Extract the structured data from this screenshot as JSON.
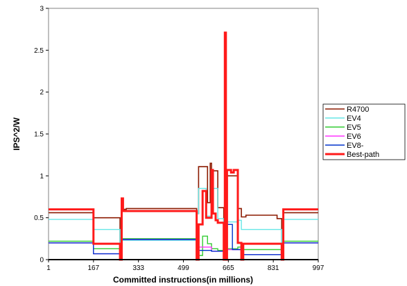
{
  "chart_data": {
    "type": "line",
    "title": "",
    "xlabel": "Committed instructions(in millions)",
    "ylabel": "IPS^2/W",
    "xlim": [
      1,
      997
    ],
    "ylim": [
      0,
      3
    ],
    "x_ticks": [
      "1",
      "167",
      "333",
      "499",
      "665",
      "831",
      "997"
    ],
    "y_ticks": [
      "0",
      "0.5",
      "1",
      "1.5",
      "2",
      "2.5",
      "3"
    ],
    "grid": false,
    "legend_position": "right",
    "series": [
      {
        "name": "R4700",
        "color": "#8b1a00",
        "points": [
          [
            1,
            0.56
          ],
          [
            167,
            0.56
          ],
          [
            167,
            0.5
          ],
          [
            265,
            0.5
          ],
          [
            265,
            0.02
          ],
          [
            271,
            0.02
          ],
          [
            271,
            0.6
          ],
          [
            288,
            0.6
          ],
          [
            288,
            0.61
          ],
          [
            548,
            0.61
          ],
          [
            548,
            0.55
          ],
          [
            555,
            0.55
          ],
          [
            555,
            1.11
          ],
          [
            588,
            1.11
          ],
          [
            588,
            0.68
          ],
          [
            598,
            0.68
          ],
          [
            598,
            1.15
          ],
          [
            603,
            1.15
          ],
          [
            603,
            1.06
          ],
          [
            626,
            1.06
          ],
          [
            626,
            0.62
          ],
          [
            648,
            0.62
          ],
          [
            648,
            0.02
          ],
          [
            655,
            0.02
          ],
          [
            655,
            1.0
          ],
          [
            700,
            1.0
          ],
          [
            700,
            0.61
          ],
          [
            713,
            0.61
          ],
          [
            713,
            0.51
          ],
          [
            730,
            0.51
          ],
          [
            730,
            0.53
          ],
          [
            845,
            0.53
          ],
          [
            845,
            0.49
          ],
          [
            862,
            0.49
          ],
          [
            862,
            0.02
          ],
          [
            868,
            0.02
          ],
          [
            868,
            0.56
          ],
          [
            997,
            0.56
          ]
        ]
      },
      {
        "name": "EV4",
        "color": "#66e6e6",
        "points": [
          [
            1,
            0.48
          ],
          [
            167,
            0.48
          ],
          [
            167,
            0.36
          ],
          [
            265,
            0.36
          ],
          [
            265,
            0.02
          ],
          [
            271,
            0.02
          ],
          [
            271,
            0.23
          ],
          [
            548,
            0.23
          ],
          [
            548,
            0.55
          ],
          [
            555,
            0.55
          ],
          [
            555,
            0.85
          ],
          [
            583,
            0.85
          ],
          [
            583,
            0.52
          ],
          [
            603,
            0.52
          ],
          [
            603,
            0.85
          ],
          [
            626,
            0.85
          ],
          [
            626,
            0.49
          ],
          [
            648,
            0.49
          ],
          [
            648,
            0.02
          ],
          [
            655,
            0.02
          ],
          [
            655,
            0.45
          ],
          [
            700,
            0.45
          ],
          [
            700,
            0.47
          ],
          [
            713,
            0.47
          ],
          [
            713,
            0.36
          ],
          [
            862,
            0.36
          ],
          [
            862,
            0.02
          ],
          [
            868,
            0.02
          ],
          [
            868,
            0.48
          ],
          [
            997,
            0.48
          ]
        ]
      },
      {
        "name": "EV5",
        "color": "#33cc33",
        "points": [
          [
            1,
            0.22
          ],
          [
            167,
            0.22
          ],
          [
            167,
            0.13
          ],
          [
            265,
            0.13
          ],
          [
            265,
            0.02
          ],
          [
            271,
            0.02
          ],
          [
            271,
            0.25
          ],
          [
            548,
            0.25
          ],
          [
            548,
            0.05
          ],
          [
            570,
            0.05
          ],
          [
            570,
            0.28
          ],
          [
            588,
            0.28
          ],
          [
            588,
            0.19
          ],
          [
            603,
            0.19
          ],
          [
            603,
            0.13
          ],
          [
            626,
            0.13
          ],
          [
            626,
            0.11
          ],
          [
            648,
            0.11
          ],
          [
            648,
            0.02
          ],
          [
            655,
            0.02
          ],
          [
            655,
            0.13
          ],
          [
            700,
            0.13
          ],
          [
            700,
            0.15
          ],
          [
            713,
            0.15
          ],
          [
            713,
            0.12
          ],
          [
            862,
            0.12
          ],
          [
            862,
            0.02
          ],
          [
            868,
            0.02
          ],
          [
            868,
            0.22
          ],
          [
            997,
            0.22
          ]
        ]
      },
      {
        "name": "EV6",
        "color": "#ff33ff",
        "points": [
          [
            1,
            0.2
          ],
          [
            167,
            0.2
          ],
          [
            167,
            0.07
          ],
          [
            265,
            0.07
          ],
          [
            265,
            0.02
          ],
          [
            271,
            0.02
          ],
          [
            271,
            0.24
          ],
          [
            548,
            0.24
          ],
          [
            548,
            0.15
          ],
          [
            603,
            0.15
          ],
          [
            603,
            0.1
          ],
          [
            648,
            0.1
          ],
          [
            648,
            0.02
          ],
          [
            655,
            0.02
          ],
          [
            655,
            0.12
          ],
          [
            713,
            0.12
          ],
          [
            713,
            0.06
          ],
          [
            862,
            0.06
          ],
          [
            862,
            0.02
          ],
          [
            868,
            0.02
          ],
          [
            868,
            0.2
          ],
          [
            997,
            0.2
          ]
        ]
      },
      {
        "name": "EV8-",
        "color": "#0033cc",
        "points": [
          [
            1,
            0.2
          ],
          [
            167,
            0.2
          ],
          [
            167,
            0.07
          ],
          [
            265,
            0.07
          ],
          [
            265,
            0.02
          ],
          [
            271,
            0.02
          ],
          [
            271,
            0.24
          ],
          [
            548,
            0.24
          ],
          [
            548,
            0.03
          ],
          [
            555,
            0.03
          ],
          [
            555,
            0.11
          ],
          [
            603,
            0.11
          ],
          [
            603,
            0.1
          ],
          [
            648,
            0.1
          ],
          [
            648,
            0.02
          ],
          [
            655,
            0.02
          ],
          [
            655,
            0.42
          ],
          [
            680,
            0.42
          ],
          [
            680,
            0.12
          ],
          [
            713,
            0.12
          ],
          [
            713,
            0.06
          ],
          [
            862,
            0.06
          ],
          [
            862,
            0.02
          ],
          [
            868,
            0.02
          ],
          [
            868,
            0.2
          ],
          [
            997,
            0.2
          ]
        ]
      },
      {
        "name": "Best-path",
        "color": "#ff1a1a",
        "points": [
          [
            1,
            0.6
          ],
          [
            167,
            0.6
          ],
          [
            167,
            0.19
          ],
          [
            265,
            0.19
          ],
          [
            265,
            0.0
          ],
          [
            271,
            0.0
          ],
          [
            271,
            0.73
          ],
          [
            276,
            0.73
          ],
          [
            276,
            0.58
          ],
          [
            548,
            0.58
          ],
          [
            548,
            0.0
          ],
          [
            555,
            0.0
          ],
          [
            555,
            0.42
          ],
          [
            570,
            0.42
          ],
          [
            570,
            0.82
          ],
          [
            583,
            0.82
          ],
          [
            583,
            0.5
          ],
          [
            603,
            0.5
          ],
          [
            603,
            1.07
          ],
          [
            608,
            1.07
          ],
          [
            608,
            0.55
          ],
          [
            618,
            0.55
          ],
          [
            618,
            0.47
          ],
          [
            626,
            0.47
          ],
          [
            626,
            0.44
          ],
          [
            648,
            0.44
          ],
          [
            648,
            0.0
          ],
          [
            652,
            0.0
          ],
          [
            652,
            2.71
          ],
          [
            656,
            2.71
          ],
          [
            656,
            0.0
          ],
          [
            660,
            0.0
          ],
          [
            660,
            1.07
          ],
          [
            675,
            1.07
          ],
          [
            675,
            1.04
          ],
          [
            685,
            1.04
          ],
          [
            685,
            1.07
          ],
          [
            700,
            1.07
          ],
          [
            700,
            0.2
          ],
          [
            713,
            0.2
          ],
          [
            713,
            0.0
          ],
          [
            720,
            0.0
          ],
          [
            720,
            0.19
          ],
          [
            862,
            0.19
          ],
          [
            862,
            0.0
          ],
          [
            868,
            0.0
          ],
          [
            868,
            0.6
          ],
          [
            997,
            0.6
          ]
        ]
      }
    ]
  }
}
